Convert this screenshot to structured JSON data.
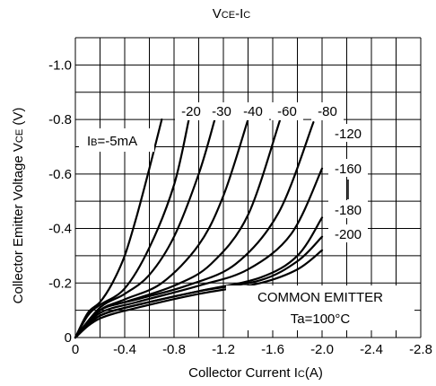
{
  "chart_data": {
    "type": "line",
    "title": {
      "main": "V",
      "sub": "CE",
      "dash": "-I",
      "sub2": "C"
    },
    "xlabel": {
      "main": "Collector Current I",
      "sub": "C",
      "tail": "(A)"
    },
    "ylabel": {
      "main": "Collector Emitter Voltage V",
      "sub": "CE",
      "tail": " (V)"
    },
    "x_ticks": [
      "0",
      "-0.4",
      "-0.8",
      "-1.2",
      "-1.6",
      "-2.0",
      "-2.4",
      "-2.8"
    ],
    "y_ticks": [
      "0",
      "-0.2",
      "-0.4",
      "-0.6",
      "-0.8",
      "-1.0"
    ],
    "xlim": [
      0,
      -2.8
    ],
    "ylim": [
      0,
      -1.1
    ],
    "grid": true,
    "series_label_prefix": {
      "main": "I",
      "sub": "B",
      "tail": "=-5mA"
    },
    "series": [
      {
        "name": "-5mA",
        "x": [
          0,
          -0.1,
          -0.2,
          -0.3,
          -0.4,
          -0.5,
          -0.6,
          -0.7
        ],
        "y": [
          0,
          -0.09,
          -0.13,
          -0.2,
          -0.3,
          -0.45,
          -0.62,
          -0.8
        ]
      },
      {
        "name": "-20",
        "x": [
          0,
          -0.1,
          -0.2,
          -0.4,
          -0.6,
          -0.8,
          -0.92
        ],
        "y": [
          0,
          -0.08,
          -0.12,
          -0.18,
          -0.33,
          -0.56,
          -0.8
        ]
      },
      {
        "name": "-30",
        "x": [
          0,
          -0.2,
          -0.4,
          -0.6,
          -0.8,
          -1.0,
          -1.13
        ],
        "y": [
          0,
          -0.11,
          -0.16,
          -0.23,
          -0.37,
          -0.6,
          -0.8
        ]
      },
      {
        "name": "-40",
        "x": [
          0,
          -0.2,
          -0.4,
          -0.7,
          -1.0,
          -1.2,
          -1.4
        ],
        "y": [
          0,
          -0.1,
          -0.14,
          -0.2,
          -0.34,
          -0.52,
          -0.8
        ]
      },
      {
        "name": "-60",
        "x": [
          0,
          -0.2,
          -0.4,
          -0.8,
          -1.1,
          -1.4,
          -1.66
        ],
        "y": [
          0,
          -0.1,
          -0.13,
          -0.19,
          -0.27,
          -0.45,
          -0.8
        ]
      },
      {
        "name": "-80",
        "x": [
          0,
          -0.2,
          -0.5,
          -0.9,
          -1.3,
          -1.65,
          -1.93
        ],
        "y": [
          0,
          -0.1,
          -0.14,
          -0.19,
          -0.27,
          -0.46,
          -0.79
        ]
      },
      {
        "name": "-120",
        "x": [
          0,
          -0.2,
          -0.5,
          -1.0,
          -1.4,
          -1.75,
          -2.0
        ],
        "y": [
          0,
          -0.09,
          -0.13,
          -0.19,
          -0.25,
          -0.38,
          -0.62
        ]
      },
      {
        "name": "-160",
        "x": [
          0,
          -0.2,
          -0.5,
          -1.0,
          -1.5,
          -1.8,
          -2.0
        ],
        "y": [
          0,
          -0.08,
          -0.12,
          -0.17,
          -0.22,
          -0.3,
          -0.44
        ]
      },
      {
        "name": "-180",
        "x": [
          0,
          -0.2,
          -0.6,
          -1.0,
          -1.5,
          -1.8,
          -2.0
        ],
        "y": [
          0,
          -0.08,
          -0.13,
          -0.17,
          -0.21,
          -0.28,
          -0.37
        ]
      },
      {
        "name": "-200",
        "x": [
          0,
          -0.2,
          -0.6,
          -1.0,
          -1.5,
          -1.8,
          -2.0
        ],
        "y": [
          0,
          -0.07,
          -0.12,
          -0.16,
          -0.2,
          -0.25,
          -0.32
        ]
      }
    ],
    "annotations": {
      "line1": "COMMON EMITTER",
      "line2": "Ta=100°C"
    }
  }
}
